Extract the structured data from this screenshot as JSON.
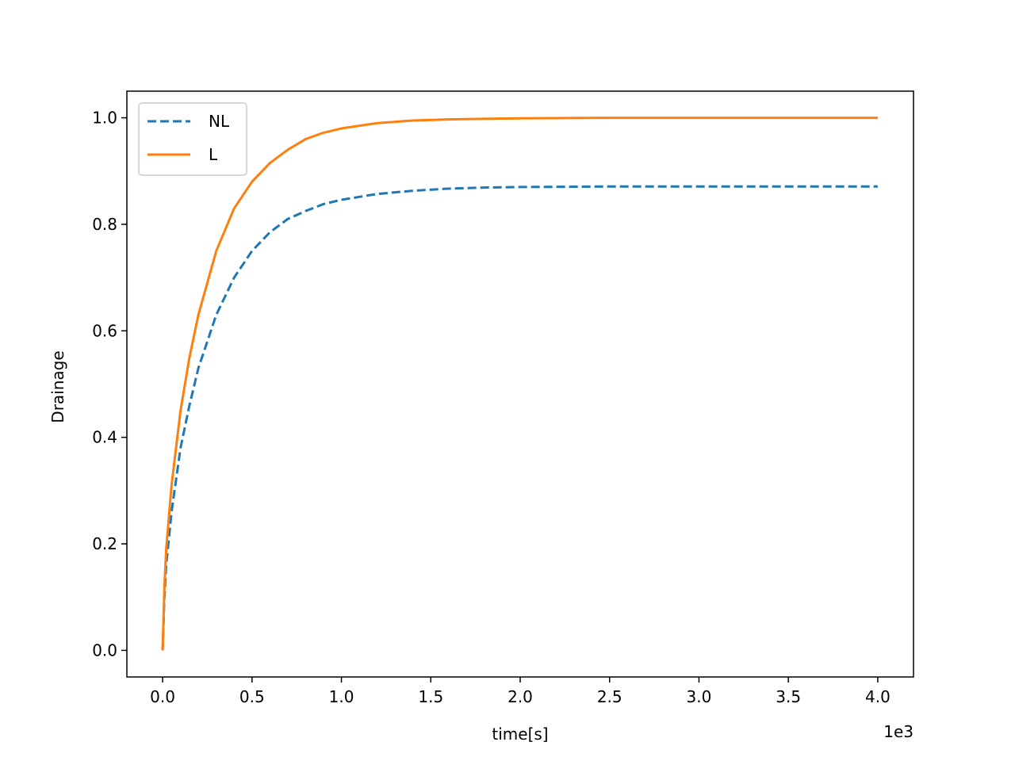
{
  "chart_data": {
    "type": "line",
    "title": "",
    "xlabel": "time[s]",
    "ylabel": "Drainage",
    "x_offset_label": "1e3",
    "xlim": [
      -0.2,
      4.2
    ],
    "ylim": [
      -0.05,
      1.05
    ],
    "x_ticks": [
      0.0,
      0.5,
      1.0,
      1.5,
      2.0,
      2.5,
      3.0,
      3.5,
      4.0
    ],
    "x_tick_labels": [
      "0.0",
      "0.5",
      "1.0",
      "1.5",
      "2.0",
      "2.5",
      "3.0",
      "3.5",
      "4.0"
    ],
    "y_ticks": [
      0.0,
      0.2,
      0.4,
      0.6,
      0.8,
      1.0
    ],
    "y_tick_labels": [
      "0.0",
      "0.2",
      "0.4",
      "0.6",
      "0.8",
      "1.0"
    ],
    "grid": false,
    "legend_position": "top-left",
    "series": [
      {
        "name": "NL",
        "color": "#1f77b4",
        "dash": "dashed",
        "x": [
          0.0,
          0.01,
          0.02,
          0.05,
          0.1,
          0.15,
          0.2,
          0.3,
          0.4,
          0.5,
          0.6,
          0.7,
          0.8,
          0.9,
          1.0,
          1.2,
          1.4,
          1.6,
          1.8,
          2.0,
          2.5,
          3.0,
          3.5,
          4.0
        ],
        "y": [
          0.0,
          0.1,
          0.16,
          0.26,
          0.38,
          0.46,
          0.53,
          0.63,
          0.7,
          0.75,
          0.785,
          0.81,
          0.825,
          0.838,
          0.846,
          0.857,
          0.863,
          0.867,
          0.869,
          0.87,
          0.871,
          0.871,
          0.871,
          0.871
        ]
      },
      {
        "name": "L",
        "color": "#ff7f0e",
        "dash": "solid",
        "x": [
          0.0,
          0.01,
          0.02,
          0.05,
          0.1,
          0.15,
          0.2,
          0.3,
          0.4,
          0.5,
          0.6,
          0.7,
          0.8,
          0.9,
          1.0,
          1.2,
          1.4,
          1.6,
          1.8,
          2.0,
          2.5,
          3.0,
          3.5,
          4.0
        ],
        "y": [
          0.0,
          0.12,
          0.19,
          0.31,
          0.45,
          0.55,
          0.63,
          0.75,
          0.83,
          0.88,
          0.915,
          0.94,
          0.96,
          0.972,
          0.98,
          0.99,
          0.995,
          0.997,
          0.998,
          0.999,
          1.0,
          1.0,
          1.0,
          1.0
        ]
      }
    ]
  }
}
